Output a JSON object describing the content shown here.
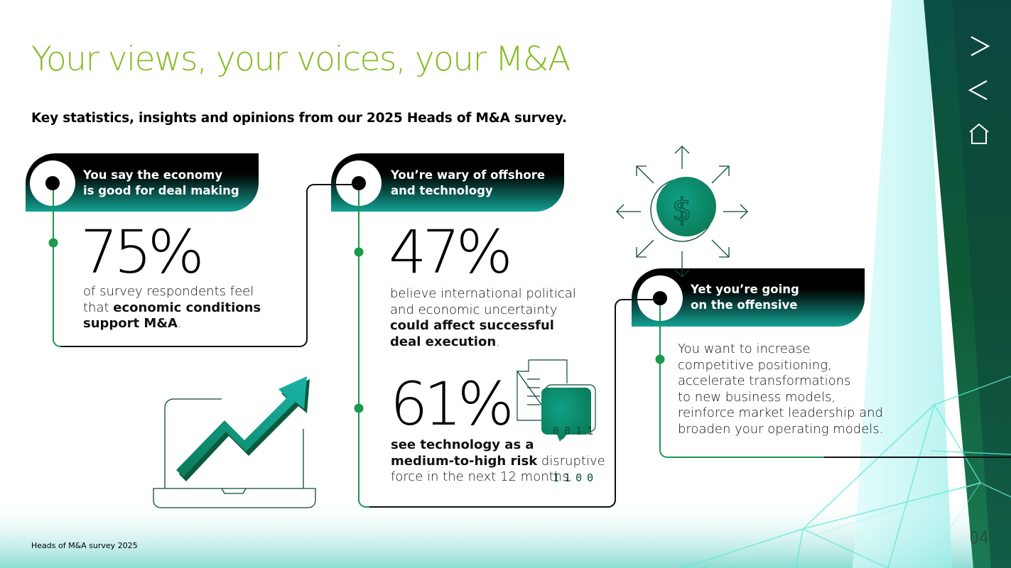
{
  "header": {
    "title": "Your views, your voices, your M&A",
    "subtitle": "Key statistics, insights and opinions from our 2025 Heads of M&A survey."
  },
  "nav": {
    "next_icon": "chevron-right-icon",
    "prev_icon": "chevron-left-icon",
    "home_icon": "home-icon"
  },
  "panels": {
    "economy": {
      "heading_line1": "You say the economy",
      "heading_line2": "is good for deal making",
      "stat": "75%",
      "text_line1": "of survey respondents feel",
      "text_line2_plain": "that ",
      "text_line2_bold": "economic conditions",
      "text_line3_bold": "support M&A",
      "text_line3_plain": "."
    },
    "offshore": {
      "heading_line1": "You’re wary of offshore",
      "heading_line2": "and technology",
      "stat1": "47%",
      "stat1_line1": "believe international political",
      "stat1_line2": "and economic uncertainty",
      "stat1_line3_bold": "could affect successful",
      "stat1_line4_bold": "deal execution",
      "stat1_line4_plain": ".",
      "stat2": "61%",
      "stat2_line1_bold": "see technology as a",
      "stat2_line2_bold": "medium-to-high risk",
      "stat2_line2_plain": " disruptive",
      "stat2_line3": "force in the next 12 months.",
      "binary_row1": "0 0 1 1",
      "binary_row2": "1 1 0 0"
    },
    "offensive": {
      "heading_line1": "Yet you’re going",
      "heading_line2": "on the offensive",
      "lines": [
        "You want to increase",
        "competitive positioning,",
        "accelerate transformations",
        "to new business models,",
        "reinforce market leadership and",
        "broaden your operating models."
      ]
    }
  },
  "footer": {
    "label": "Heads of M&A survey 2025",
    "page_number": "04"
  },
  "colors": {
    "title_green": "#86bc25",
    "line_green": "#1a9a4a",
    "teal": "#0fa89a",
    "dark_green": "#0b5a3b"
  }
}
